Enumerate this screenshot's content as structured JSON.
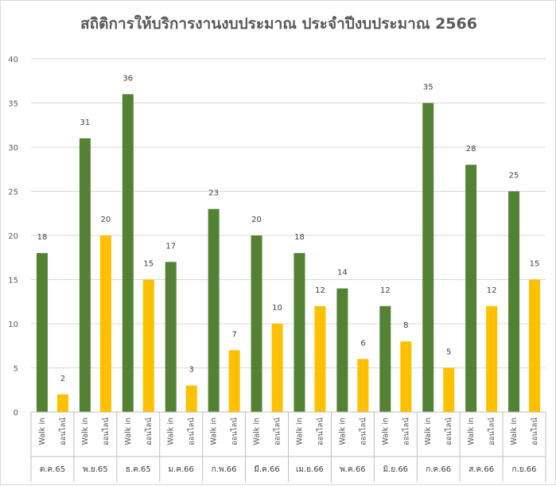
{
  "chart_data": {
    "type": "bar",
    "title": "สถิติการให้บริการงานงบประมาณ ประจำปีงบประมาณ 2566",
    "xlabel": "",
    "ylabel": "",
    "ylim": [
      0,
      40
    ],
    "yticks": [
      "0",
      "5",
      "10",
      "15",
      "20",
      "25",
      "30",
      "35",
      "40"
    ],
    "grid": true,
    "legend": "none",
    "groups": [
      "ต.ค.65",
      "พ.ย.65",
      "ธ.ค.65",
      "ม.ค.66",
      "ก.พ.66",
      "มี.ค.66",
      "เม.ย.66",
      "พ.ค.66",
      "มิ.ย.66",
      "ก.ค.66",
      "ส.ค.66",
      "ก.ย.66"
    ],
    "subcategories": [
      "Walk in",
      "ออนไลน์"
    ],
    "series": [
      {
        "values": [
          18,
          31,
          36,
          17,
          23,
          20,
          18,
          14,
          12,
          35,
          28,
          25
        ],
        "color": "#548235"
      },
      {
        "values": [
          2,
          20,
          15,
          3,
          7,
          10,
          12,
          6,
          8,
          5,
          12,
          15
        ],
        "color": "#FFC000"
      }
    ]
  },
  "colors": {
    "grid": "#d9d9d9",
    "axis": "#bfbfbf",
    "text": "#595959"
  }
}
